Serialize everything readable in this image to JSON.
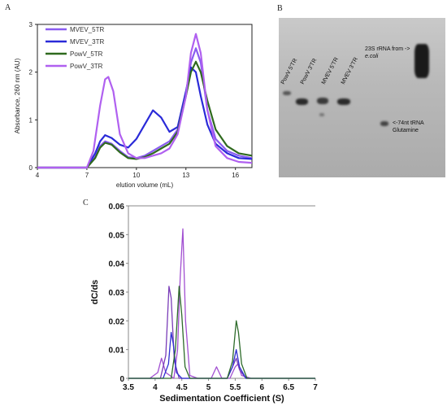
{
  "panels": {
    "a": "A",
    "b": "B",
    "c": "C"
  },
  "chart_data": [
    {
      "type": "line",
      "xlabel": "elution volume (mL)",
      "ylabel": "Absorbance, 260 nm (AU)",
      "xlim": [
        4,
        17
      ],
      "ylim": [
        0,
        3
      ],
      "xticks": [
        "4",
        "7",
        "10",
        "13",
        "16"
      ],
      "yticks": [
        "0",
        "1",
        "2",
        "3"
      ],
      "legend_position": "top-left",
      "series": [
        {
          "name": "MVEV_5TR",
          "color": "#8a5cf0",
          "x": [
            4,
            7,
            7.5,
            7.8,
            8.1,
            8.5,
            9,
            9.5,
            10,
            10.5,
            11,
            11.5,
            12,
            12.5,
            13,
            13.3,
            13.6,
            13.9,
            14.3,
            14.8,
            15.5,
            16.2,
            17
          ],
          "y": [
            0,
            0,
            0.22,
            0.45,
            0.55,
            0.5,
            0.35,
            0.22,
            0.2,
            0.25,
            0.35,
            0.45,
            0.55,
            0.8,
            1.55,
            2.2,
            2.5,
            2.2,
            1.2,
            0.6,
            0.35,
            0.25,
            0.2
          ]
        },
        {
          "name": "MVEV_3TR",
          "color": "#2a2ad8",
          "x": [
            4,
            7,
            7.5,
            7.8,
            8.1,
            8.5,
            9,
            9.5,
            10,
            10.5,
            11,
            11.5,
            12,
            12.5,
            13,
            13.3,
            13.6,
            13.9,
            14.3,
            14.8,
            15.5,
            16.2,
            17
          ],
          "y": [
            0,
            0,
            0.3,
            0.55,
            0.68,
            0.62,
            0.48,
            0.42,
            0.6,
            0.9,
            1.2,
            1.05,
            0.75,
            0.85,
            1.6,
            2.1,
            2.0,
            1.5,
            0.9,
            0.5,
            0.3,
            0.2,
            0.18
          ]
        },
        {
          "name": "PowV_5TR",
          "color": "#2f6a1e",
          "x": [
            4,
            7,
            7.5,
            7.8,
            8.1,
            8.5,
            9,
            9.5,
            10,
            10.5,
            11,
            11.5,
            12,
            12.5,
            13,
            13.3,
            13.6,
            13.9,
            14.3,
            14.8,
            15.5,
            16.2,
            17
          ],
          "y": [
            0,
            0,
            0.2,
            0.42,
            0.52,
            0.48,
            0.32,
            0.2,
            0.18,
            0.22,
            0.3,
            0.4,
            0.5,
            0.75,
            1.5,
            2.0,
            2.22,
            2.0,
            1.4,
            0.8,
            0.45,
            0.3,
            0.25
          ]
        },
        {
          "name": "PowV_3TR",
          "color": "#b060f0",
          "x": [
            4,
            7,
            7.4,
            7.8,
            8.1,
            8.3,
            8.6,
            9,
            9.5,
            10,
            10.5,
            11,
            11.5,
            12,
            12.5,
            13,
            13.3,
            13.6,
            13.9,
            14.3,
            14.8,
            15.5,
            16.2,
            17
          ],
          "y": [
            0,
            0,
            0.35,
            1.3,
            1.85,
            1.9,
            1.6,
            0.7,
            0.3,
            0.2,
            0.2,
            0.25,
            0.3,
            0.4,
            0.7,
            1.5,
            2.4,
            2.8,
            2.4,
            1.2,
            0.45,
            0.2,
            0.12,
            0.1
          ]
        }
      ]
    },
    {
      "type": "line",
      "xlabel": "Sedimentation Coefficient (S)",
      "ylabel": "dC/ds",
      "xlim": [
        3.5,
        7
      ],
      "ylim": [
        0,
        0.06
      ],
      "xticks": [
        "3.5",
        "4",
        "4.5",
        "5",
        "5.5",
        "6",
        "6.5",
        "7"
      ],
      "yticks": [
        "0",
        "0.01",
        "0.02",
        "0.03",
        "0.04",
        "0.05",
        "0.06"
      ],
      "series": [
        {
          "color": "#a14fd1",
          "x": [
            3.5,
            3.9,
            4.05,
            4.12,
            4.2,
            4.35,
            4.42,
            4.47,
            4.52,
            4.57,
            4.65,
            4.8,
            5.05,
            5.15,
            5.25,
            5.4,
            5.5,
            5.55,
            5.62,
            5.8,
            7
          ],
          "y": [
            0,
            0,
            0.002,
            0.007,
            0.002,
            0.0,
            0.01,
            0.035,
            0.052,
            0.02,
            0.001,
            0,
            0,
            0.004,
            0.0,
            0,
            0.004,
            0.005,
            0.001,
            0,
            0
          ]
        },
        {
          "color": "#7a3db8",
          "x": [
            3.5,
            4.1,
            4.2,
            4.26,
            4.3,
            4.36,
            4.45,
            4.6,
            5.35,
            5.45,
            5.52,
            5.58,
            5.7,
            7
          ],
          "y": [
            0,
            0,
            0.008,
            0.032,
            0.028,
            0.006,
            0,
            0,
            0,
            0.004,
            0.007,
            0.003,
            0,
            0
          ]
        },
        {
          "color": "#2f2fd0",
          "x": [
            3.5,
            4.15,
            4.25,
            4.3,
            4.34,
            4.4,
            4.5,
            5.35,
            5.45,
            5.52,
            5.58,
            5.7,
            7
          ],
          "y": [
            0,
            0,
            0.005,
            0.016,
            0.012,
            0.002,
            0,
            0,
            0.004,
            0.01,
            0.004,
            0,
            0
          ]
        },
        {
          "color": "#2d6b2a",
          "x": [
            3.5,
            4.3,
            4.38,
            4.45,
            4.5,
            4.56,
            4.65,
            5.35,
            5.45,
            5.52,
            5.56,
            5.62,
            5.72,
            7
          ],
          "y": [
            0,
            0,
            0.01,
            0.032,
            0.022,
            0.004,
            0,
            0,
            0.006,
            0.02,
            0.016,
            0.005,
            0,
            0
          ]
        }
      ]
    }
  ],
  "gel": {
    "lanes": [
      "PowV 5'TR",
      "PowV 3'TR",
      "MVEV 5'TR",
      "MVEV 3'TR"
    ],
    "note_top_line1": "23S rRNA from ->",
    "note_top_line2": "e.coli",
    "note_bottom_line1": "<-74nt tRNA",
    "note_bottom_line2": "Glutamine"
  }
}
